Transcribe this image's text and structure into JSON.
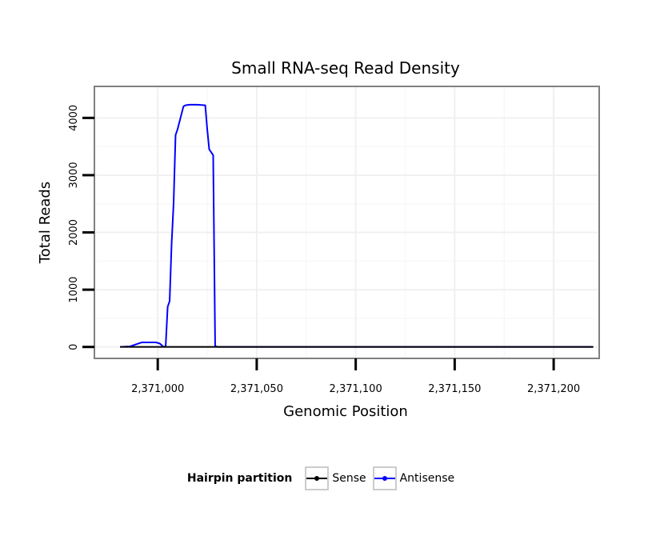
{
  "chart_data": {
    "type": "line",
    "title": "Small RNA-seq Read Density",
    "xlabel": "Genomic Position",
    "ylabel": "Total Reads",
    "xlim": [
      2370968,
      2371223
    ],
    "ylim": [
      -200,
      4550
    ],
    "x_ticks": [
      2371000,
      2371050,
      2371100,
      2371150,
      2371200
    ],
    "x_tick_labels": [
      "2,371,000",
      "2,371,050",
      "2,371,100",
      "2,371,150",
      "2,371,200"
    ],
    "y_ticks": [
      0,
      1000,
      2000,
      3000,
      4000
    ],
    "y_tick_labels": [
      "0",
      "1000",
      "2000",
      "3000",
      "4000"
    ],
    "grid": true,
    "legend_position": "bottom",
    "legend_title": "Hairpin partition",
    "series": [
      {
        "name": "Sense",
        "color": "#000000",
        "x": [
          2370981,
          2371220
        ],
        "y": [
          0,
          0
        ]
      },
      {
        "name": "Antisense",
        "color": "#0000ff",
        "x": [
          2370981,
          2370986,
          2370992,
          2370999,
          2371001,
          2371003,
          2371004,
          2371005,
          2371006,
          2371007,
          2371008,
          2371009,
          2371010,
          2371013,
          2371014,
          2371016,
          2371020,
          2371024,
          2371025,
          2371026,
          2371028,
          2371029,
          2371030,
          2371032,
          2371220
        ],
        "y": [
          0,
          10,
          80,
          80,
          60,
          0,
          10,
          700,
          800,
          1800,
          2500,
          3700,
          3800,
          4200,
          4220,
          4230,
          4230,
          4220,
          3800,
          3450,
          3350,
          20,
          0,
          0,
          0
        ]
      }
    ]
  },
  "legend": {
    "title": "Hairpin partition",
    "items": [
      {
        "label": "Sense",
        "color": "#000000"
      },
      {
        "label": "Antisense",
        "color": "#0000ff"
      }
    ]
  }
}
